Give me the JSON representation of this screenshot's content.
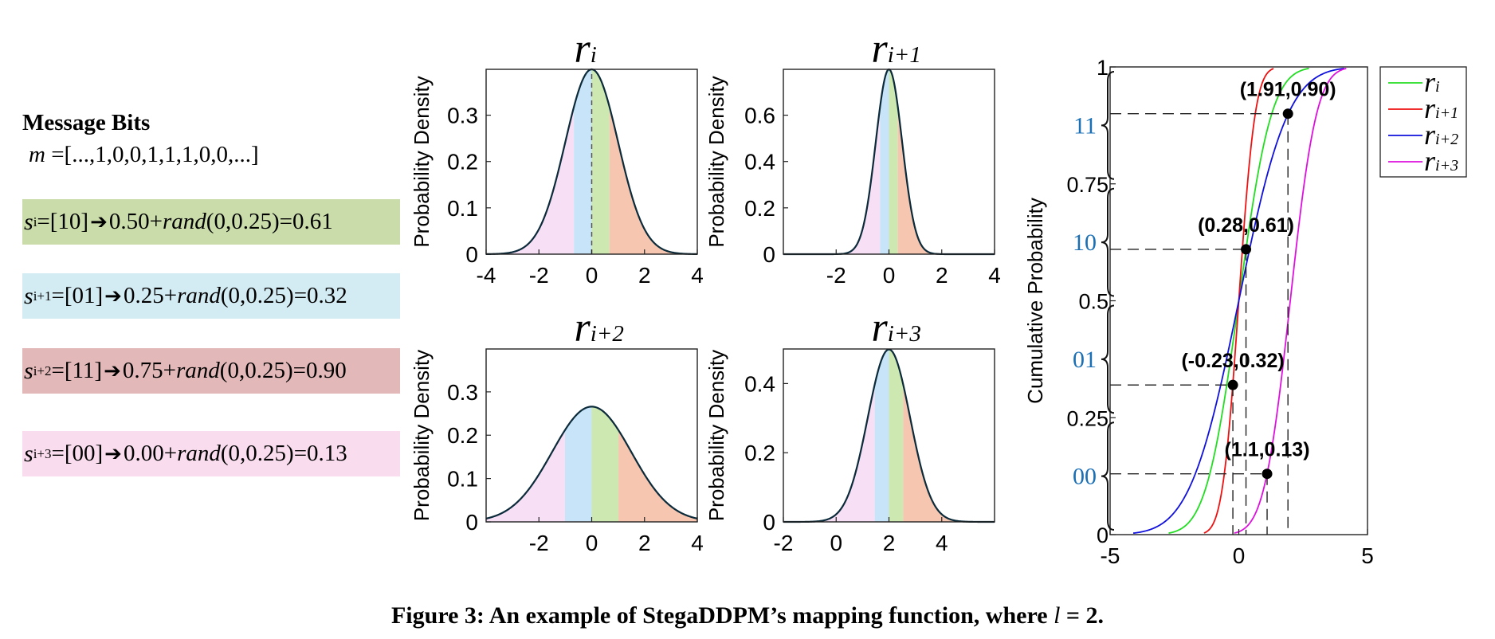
{
  "message": {
    "title": "Message Bits",
    "m_symbol": "m",
    "m_value": "=[...,1,0,0,1,1,1,0,0,...]"
  },
  "segments": [
    {
      "symbol": "s",
      "sub": "i",
      "bits": "=[10]",
      "base": "0.50+",
      "rand": "rand",
      "rest": "(0,0.25)=0.61",
      "color": "#c9dcaa"
    },
    {
      "symbol": "s",
      "sub": "i+1",
      "bits": "=[01]",
      "base": "0.25+",
      "rand": "rand",
      "rest": "(0,0.25)=0.32",
      "color": "#d3ebf3"
    },
    {
      "symbol": "s",
      "sub": "i+2",
      "bits": "=[11]",
      "base": "0.75+",
      "rand": "rand",
      "rest": "(0,0.25)=0.90",
      "color": "#e3b8b8"
    },
    {
      "symbol": "s",
      "sub": "i+3",
      "bits": "=[00]",
      "base": "0.00+",
      "rand": "rand",
      "rest": "(0,0.25)=0.13",
      "color": "#f9dcee"
    }
  ],
  "chart_data": [
    {
      "type": "area",
      "title": "r_i",
      "mean": 0,
      "std": 1,
      "xlim": [
        -4,
        4
      ],
      "ylim": [
        0,
        0.399
      ],
      "xticks": [
        "-4",
        "-2",
        "0",
        "2",
        "4"
      ],
      "yticks": [
        "0",
        "0.1",
        "0.2",
        "0.3"
      ],
      "ylabel": "Probability Density",
      "region_edges": [
        -0.674,
        0,
        0.674
      ],
      "selected_point": 0
    },
    {
      "type": "area",
      "title": "r_i+1",
      "mean": 0,
      "std": 0.5,
      "xlim": [
        -4,
        4
      ],
      "ylim": [
        0,
        0.798
      ],
      "xticks": [
        "-2",
        "0",
        "2",
        "4"
      ],
      "yticks": [
        "0",
        "0.2",
        "0.4",
        "0.6"
      ],
      "ylabel": "Probability Density",
      "region_edges": [
        -0.337,
        0,
        0.337
      ]
    },
    {
      "type": "area",
      "title": "r_i+2",
      "mean": 0,
      "std": 1.5,
      "xlim": [
        -4,
        4
      ],
      "ylim": [
        0,
        0.399
      ],
      "xticks": [
        "-2",
        "0",
        "2",
        "4"
      ],
      "yticks": [
        "0",
        "0.1",
        "0.2",
        "0.3"
      ],
      "ylabel": "Probability Density",
      "region_edges": [
        -1.012,
        0,
        1.012
      ]
    },
    {
      "type": "area",
      "title": "r_i+3",
      "mean": 2,
      "std": 0.8,
      "xlim": [
        -2,
        6
      ],
      "ylim": [
        0,
        0.5
      ],
      "xticks": [
        "-2",
        "0",
        "2",
        "4"
      ],
      "yticks": [
        "0",
        "0.2",
        "0.4"
      ],
      "ylabel": "Probability Density",
      "region_edges": [
        1.46,
        2,
        2.54
      ]
    },
    {
      "type": "line",
      "ylabel": "Cumulative Probability",
      "xlim": [
        -5,
        5
      ],
      "ylim": [
        0,
        1
      ],
      "xticks": [
        "-5",
        "0",
        "5"
      ],
      "yticks": [
        "0",
        "0.25",
        "0.5",
        "0.75",
        "1"
      ],
      "bit_labels": [
        "00",
        "01",
        "10",
        "11"
      ],
      "legend": [
        "r_i",
        "r_i+1",
        "r_i+2",
        "r_i+3"
      ],
      "legend_position": "top-right",
      "series": [
        {
          "name": "r_i",
          "mean": 0,
          "std": 1,
          "color": "#22dd22"
        },
        {
          "name": "r_i+1",
          "mean": 0,
          "std": 0.5,
          "color": "#ee1111"
        },
        {
          "name": "r_i+2",
          "mean": 0,
          "std": 1.5,
          "color": "#1111dd"
        },
        {
          "name": "r_i+3",
          "mean": 2,
          "std": 0.8,
          "color": "#dd11dd"
        }
      ],
      "points": [
        {
          "x": 1.91,
          "y": 0.9,
          "label": "(1.91,0.90)"
        },
        {
          "x": 0.28,
          "y": 0.61,
          "label": "(0.28,0.61)"
        },
        {
          "x": -0.23,
          "y": 0.32,
          "label": "(-0.23,0.32)"
        },
        {
          "x": 1.1,
          "y": 0.13,
          "label": "(1.1,0.13)"
        }
      ]
    }
  ],
  "colors": {
    "region_1": "#f7e0f5",
    "region_2": "#c8e4f8",
    "region_3": "#cde8b0",
    "region_4": "#f6c6b0",
    "bit_label": "#1a6fb5"
  },
  "caption": {
    "prefix": "Figure 3: An example of StegaDDPM’s mapping function, where ",
    "var": "l",
    "suffix": " = 2."
  }
}
